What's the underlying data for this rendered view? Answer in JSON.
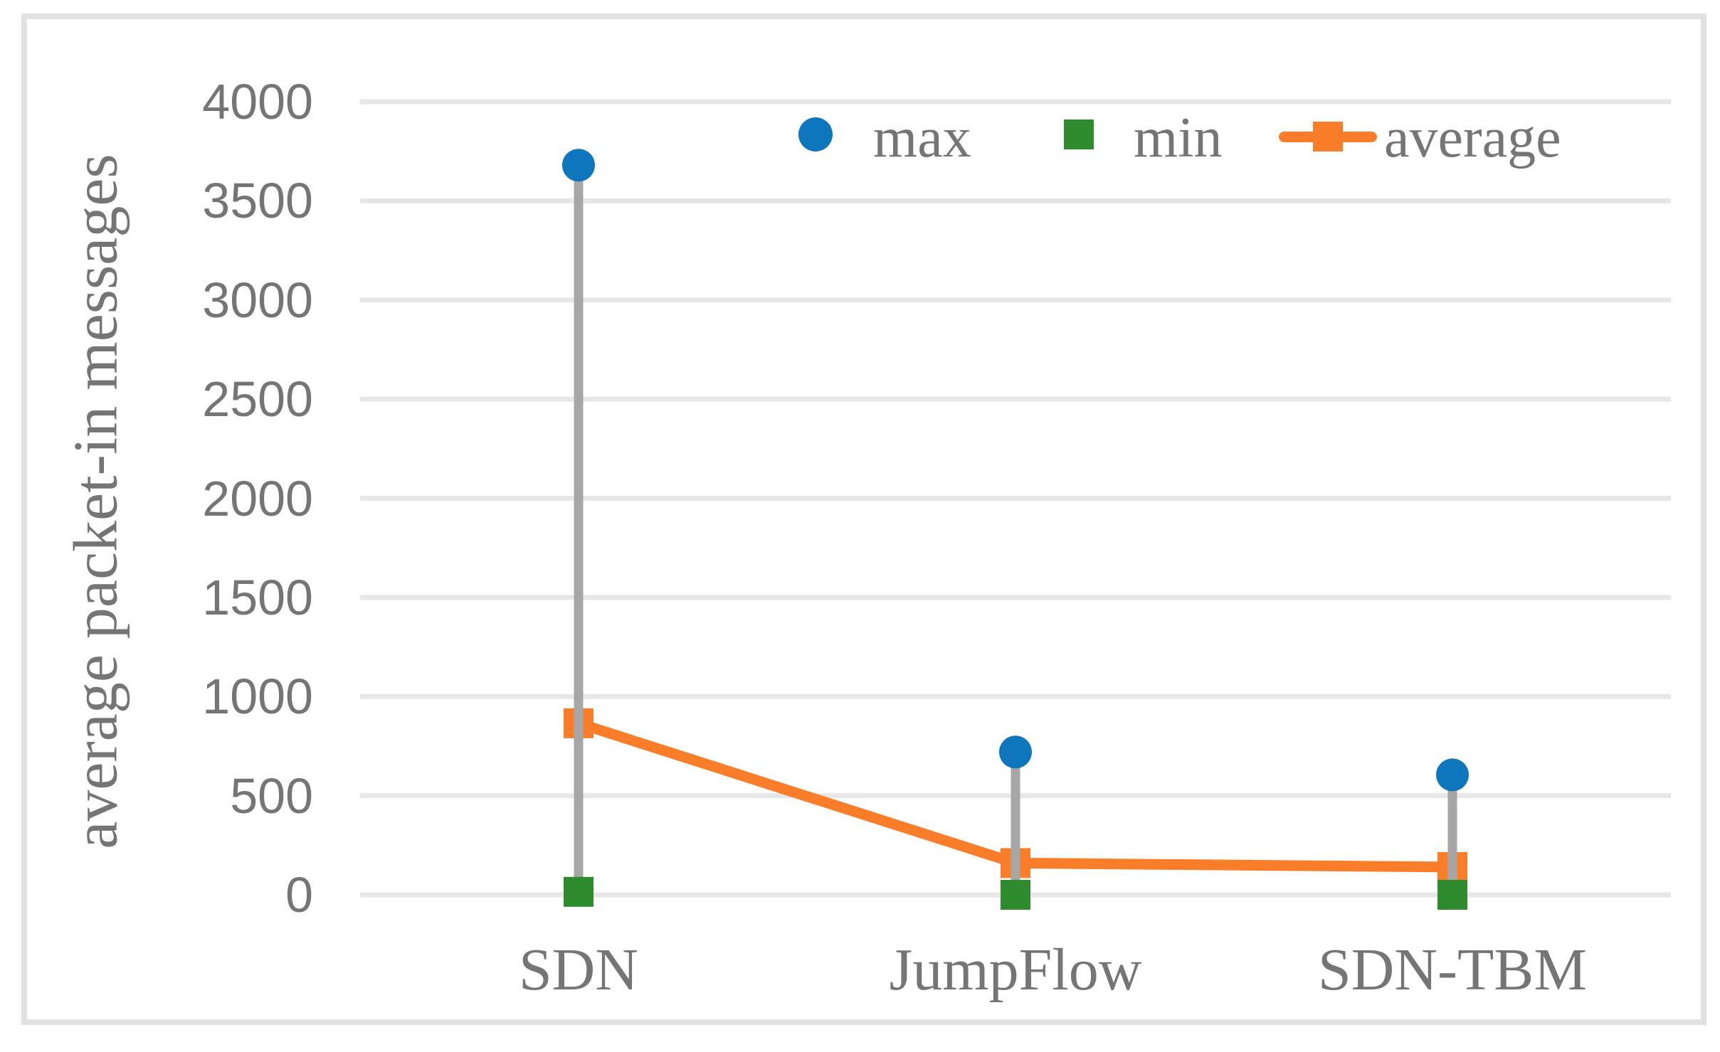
{
  "figure": {
    "background": "#FFFFFF",
    "frame_color": "#E2E2E2"
  },
  "colors": {
    "max": "#0E76BC",
    "min": "#2E8B2E",
    "average": "#FA7D29",
    "hilo_bar": "#A6A6A6",
    "gridline": "#E7E7E7",
    "text": "#757575"
  },
  "chart_data": {
    "type": "line",
    "subtype": "high-low-lines-with-average-line",
    "title": "",
    "xlabel": "",
    "ylabel": "average packet-in messages",
    "categories": [
      "SDN",
      "JumpFlow",
      "SDN-TBM"
    ],
    "series": [
      {
        "name": "max",
        "type": "scatter",
        "marker": "circle",
        "color": "#0E76BC",
        "values": [
          3680,
          720,
          605
        ]
      },
      {
        "name": "min",
        "type": "scatter",
        "marker": "square",
        "color": "#2E8B2E",
        "values": [
          15,
          0,
          0
        ]
      },
      {
        "name": "average",
        "type": "line",
        "marker": "square",
        "color": "#FA7D29",
        "values": [
          865,
          160,
          140
        ]
      }
    ],
    "hilo_lines": {
      "from": "min",
      "to": "max",
      "color": "#A6A6A6"
    },
    "ylim": [
      0,
      4000
    ],
    "yticks": [
      0,
      500,
      1000,
      1500,
      2000,
      2500,
      3000,
      3500,
      4000
    ],
    "grid": "horizontal",
    "legend_position": "top-center",
    "legend_items": [
      "max",
      "min",
      "average"
    ]
  }
}
